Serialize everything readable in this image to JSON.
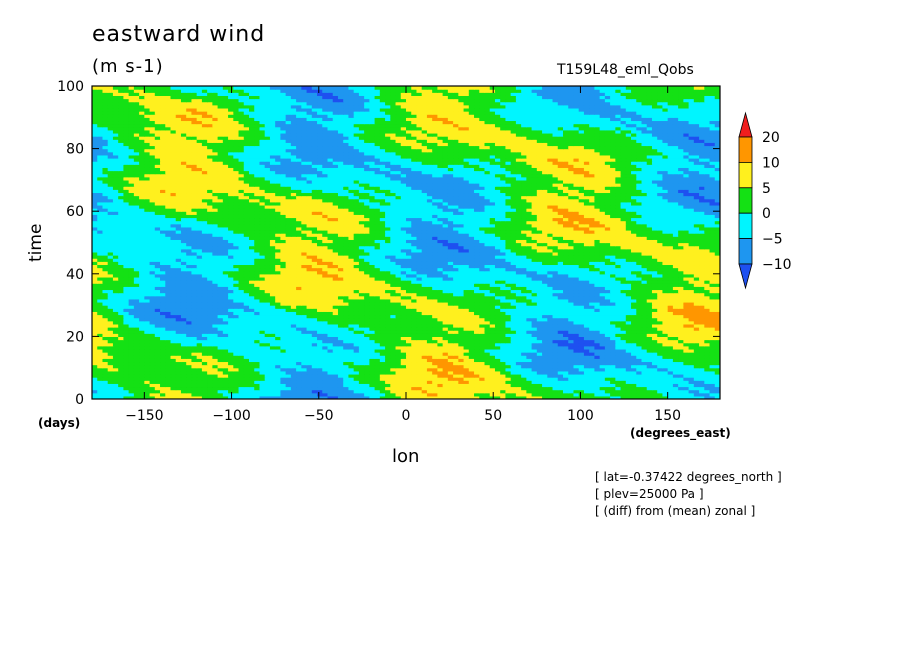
{
  "chart_data": {
    "type": "heatmap",
    "title": "eastward wind",
    "units": "(m s-1)",
    "run_label": "T159L48_eml_Qobs",
    "xlabel": "lon",
    "ylabel": "time",
    "x_unit_label": "(degrees_east)",
    "y_unit_label": "(days)",
    "xlim": [
      -180,
      180
    ],
    "ylim": [
      0,
      100
    ],
    "x_ticks": [
      -150,
      -100,
      -50,
      0,
      50,
      100,
      150
    ],
    "y_ticks": [
      0,
      20,
      40,
      60,
      80,
      100
    ],
    "contour_levels": [
      -10,
      -5,
      0,
      5,
      10,
      20
    ],
    "colorbar_labels": [
      "20",
      "10",
      "5",
      "0",
      "-5",
      "-10"
    ],
    "colors": {
      "below_-10": "#1e50f0",
      "-10_to_-5": "#1e96f0",
      "-5_to_0": "#00f5ff",
      "0_to_5": "#14e114",
      "5_to_10": "#fff01e",
      "10_to_20": "#ff9600",
      "above_20": "#f01e1e"
    },
    "annotations": [
      "[ lat=-0.37422 degrees_north ]",
      "[ plev=25000 Pa ]",
      "[ (diff) from (mean) zonal ]"
    ]
  }
}
